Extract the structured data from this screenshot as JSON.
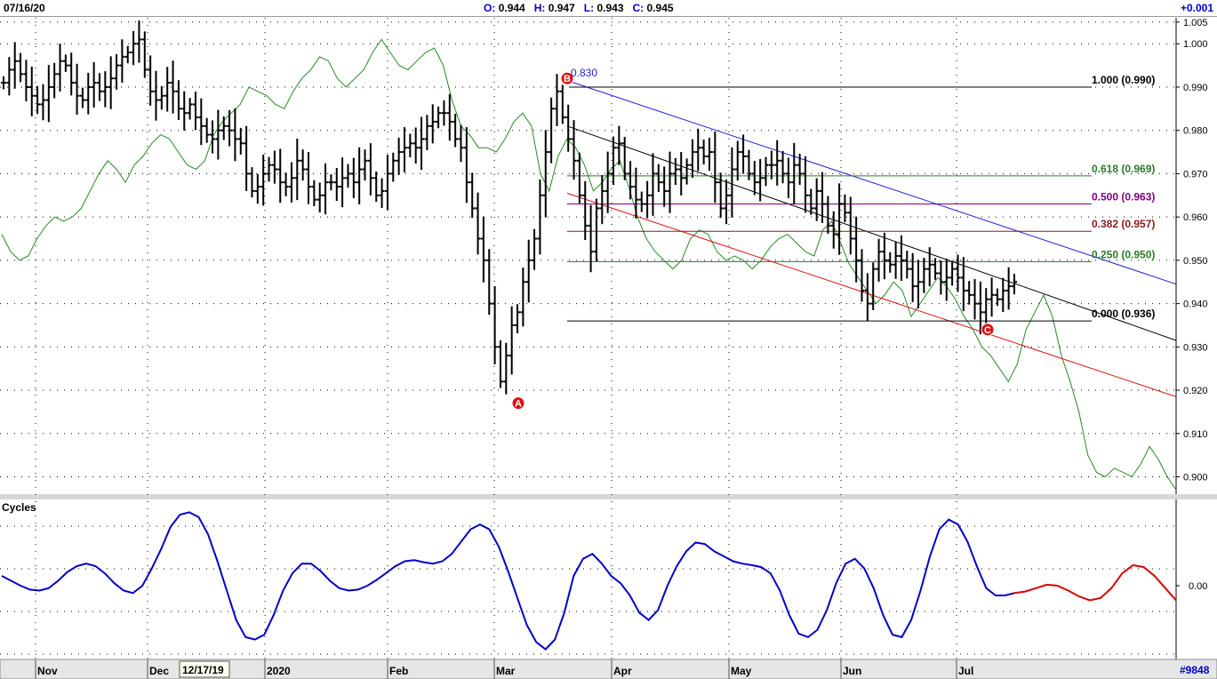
{
  "header": {
    "date": "07/16/20",
    "open_label": "O:",
    "open": "0.944",
    "high_label": "H:",
    "high": "0.947",
    "low_label": "L:",
    "low": "0.943",
    "close_label": "C:",
    "close": "0.945",
    "change": "+0.001"
  },
  "footer": {
    "cursor_date": "12/17/19",
    "symbol_code": "#9848"
  },
  "colors": {
    "price_bar": "#000000",
    "overlay": "#228b22",
    "upper_channel": "#1f1fd6",
    "mid_channel": "#000000",
    "lower_channel": "#e01010",
    "cycle_actual": "#0000cc",
    "cycle_projection": "#dd0000",
    "point_marker": "#e01010",
    "fib_0": "#000000",
    "fib_250": "#2a7a2a",
    "fib_382": "#8b1a1a",
    "fib_500": "#800080",
    "fib_618": "#2a7a2a",
    "fib_1": "#000000"
  },
  "chart_data": [
    {
      "type": "bar",
      "title": "",
      "subtype": "OHLC price bars with Fibonacci retracement, regression channel and overlay line",
      "x_axis": {
        "months": [
          "Nov",
          "Dec",
          "2020",
          "Feb",
          "Mar",
          "Apr",
          "May",
          "Jun",
          "Jul"
        ]
      },
      "y_axis": {
        "ylim": [
          0.896,
          1.006
        ],
        "ticks": [
          "1.005",
          "1.000",
          "0.990",
          "0.980",
          "0.970",
          "0.960",
          "0.950",
          "0.940",
          "0.930",
          "0.920",
          "0.910",
          "0.900"
        ],
        "grid": "dotted"
      },
      "markers": [
        {
          "label": "A",
          "value": 0.917
        },
        {
          "label": "B",
          "value": 0.992,
          "annotation": "0.830"
        },
        {
          "label": "C",
          "value": 0.934
        }
      ],
      "fibonacci": [
        {
          "label": "1.000 (0.990)",
          "value": 0.99
        },
        {
          "label": "0.618 (0.969)",
          "value": 0.9695
        },
        {
          "label": "0.500 (0.963)",
          "value": 0.963
        },
        {
          "label": "0.382 (0.957)",
          "value": 0.9567
        },
        {
          "label": "0.250 (0.950)",
          "value": 0.9497
        },
        {
          "label": "0.000 (0.936)",
          "value": 0.936
        }
      ],
      "series": [
        {
          "kind": "ohlc",
          "close": [
            0.991,
            0.994,
            0.996,
            0.993,
            0.99,
            0.988,
            0.986,
            0.987,
            0.99,
            0.993,
            0.996,
            0.995,
            0.991,
            0.988,
            0.987,
            0.99,
            0.991,
            0.989,
            0.99,
            0.992,
            0.995,
            0.997,
            0.998,
            1.0,
            1.001,
            0.994,
            0.989,
            0.987,
            0.988,
            0.991,
            0.989,
            0.985,
            0.984,
            0.986,
            0.983,
            0.981,
            0.979,
            0.978,
            0.98,
            0.981,
            0.98,
            0.978,
            0.977,
            0.97,
            0.966,
            0.967,
            0.97,
            0.972,
            0.971,
            0.968,
            0.967,
            0.969,
            0.973,
            0.971,
            0.967,
            0.964,
            0.965,
            0.968,
            0.968,
            0.967,
            0.969,
            0.97,
            0.968,
            0.971,
            0.973,
            0.969,
            0.965,
            0.966,
            0.97,
            0.973,
            0.975,
            0.976,
            0.977,
            0.976,
            0.978,
            0.981,
            0.982,
            0.984,
            0.984,
            0.982,
            0.978,
            0.976,
            0.968,
            0.962,
            0.955,
            0.95,
            0.94,
            0.93,
            0.922,
            0.928,
            0.935,
            0.938,
            0.945,
            0.95,
            0.955,
            0.965,
            0.975,
            0.985,
            0.989,
            0.983,
            0.978,
            0.973,
            0.965,
            0.958,
            0.952,
            0.962,
            0.966,
            0.97,
            0.976,
            0.977,
            0.97,
            0.967,
            0.964,
            0.963,
            0.965,
            0.97,
            0.968,
            0.966,
            0.97,
            0.971,
            0.969,
            0.972,
            0.975,
            0.976,
            0.974,
            0.975,
            0.968,
            0.962,
            0.965,
            0.971,
            0.975,
            0.974,
            0.97,
            0.968,
            0.969,
            0.972,
            0.972,
            0.973,
            0.97,
            0.968,
            0.972,
            0.97,
            0.965,
            0.962,
            0.966,
            0.963,
            0.958,
            0.956,
            0.963,
            0.961,
            0.955,
            0.95,
            0.943,
            0.94,
            0.948,
            0.952,
            0.95,
            0.949,
            0.951,
            0.95,
            0.948,
            0.944,
            0.945,
            0.948,
            0.949,
            0.947,
            0.945,
            0.946,
            0.948,
            0.946,
            0.943,
            0.942,
            0.94,
            0.938,
            0.941,
            0.942,
            0.941,
            0.943,
            0.944,
            0.945
          ]
        },
        {
          "kind": "overlay",
          "values": [
            0.956,
            0.952,
            0.95,
            0.951,
            0.955,
            0.958,
            0.96,
            0.959,
            0.96,
            0.962,
            0.966,
            0.97,
            0.973,
            0.971,
            0.968,
            0.972,
            0.974,
            0.977,
            0.979,
            0.978,
            0.975,
            0.972,
            0.971,
            0.973,
            0.979,
            0.982,
            0.984,
            0.986,
            0.99,
            0.989,
            0.988,
            0.986,
            0.985,
            0.989,
            0.992,
            0.994,
            0.997,
            0.996,
            0.992,
            0.99,
            0.992,
            0.994,
            0.998,
            1.001,
            0.998,
            0.995,
            0.994,
            0.996,
            0.998,
            0.999,
            0.995,
            0.987,
            0.981,
            0.979,
            0.976,
            0.976,
            0.975,
            0.978,
            0.982,
            0.984,
            0.981,
            0.97,
            0.966,
            0.974,
            0.978,
            0.976,
            0.972,
            0.966,
            0.968,
            0.971,
            0.973,
            0.967,
            0.96,
            0.955,
            0.952,
            0.95,
            0.948,
            0.95,
            0.955,
            0.957,
            0.956,
            0.952,
            0.95,
            0.951,
            0.95,
            0.948,
            0.95,
            0.953,
            0.955,
            0.956,
            0.954,
            0.952,
            0.951,
            0.957,
            0.959,
            0.954,
            0.949,
            0.946,
            0.943,
            0.94,
            0.942,
            0.945,
            0.943,
            0.937,
            0.94,
            0.943,
            0.946,
            0.944,
            0.941,
            0.937,
            0.934,
            0.93,
            0.928,
            0.925,
            0.922,
            0.926,
            0.934,
            0.938,
            0.942,
            0.937,
            0.928,
            0.922,
            0.915,
            0.905,
            0.901,
            0.9,
            0.902,
            0.901,
            0.9,
            0.903,
            0.907,
            0.904,
            0.9,
            0.897
          ]
        }
      ]
    },
    {
      "type": "line",
      "title": "Cycles",
      "y_axis": {
        "ticks": [
          "0.00"
        ]
      },
      "series": [
        {
          "kind": "actual",
          "values": [
            0.2,
            0.1,
            0.0,
            -0.08,
            -0.1,
            -0.05,
            0.1,
            0.28,
            0.4,
            0.45,
            0.4,
            0.25,
            0.05,
            -0.1,
            -0.15,
            0.0,
            0.35,
            0.75,
            1.2,
            1.45,
            1.5,
            1.4,
            1.05,
            0.5,
            -0.1,
            -0.7,
            -1.05,
            -1.1,
            -1.0,
            -0.6,
            -0.1,
            0.25,
            0.45,
            0.45,
            0.3,
            0.1,
            -0.05,
            -0.1,
            -0.08,
            0.0,
            0.12,
            0.26,
            0.4,
            0.5,
            0.52,
            0.48,
            0.45,
            0.5,
            0.65,
            0.9,
            1.15,
            1.25,
            1.15,
            0.8,
            0.3,
            -0.25,
            -0.8,
            -1.15,
            -1.3,
            -1.1,
            -0.55,
            0.2,
            0.55,
            0.65,
            0.45,
            0.2,
            0.05,
            -0.2,
            -0.55,
            -0.7,
            -0.5,
            0.0,
            0.4,
            0.7,
            0.88,
            0.85,
            0.7,
            0.6,
            0.5,
            0.45,
            0.42,
            0.38,
            0.25,
            -0.1,
            -0.6,
            -0.98,
            -1.05,
            -0.9,
            -0.5,
            0.05,
            0.45,
            0.55,
            0.35,
            -0.05,
            -0.6,
            -1.0,
            -1.05,
            -0.7,
            -0.1,
            0.6,
            1.15,
            1.35,
            1.25,
            0.9,
            0.4,
            -0.05,
            -0.2,
            -0.2,
            -0.15
          ]
        },
        {
          "kind": "projection",
          "values": [
            -0.15,
            -0.12,
            -0.05,
            0.02,
            0.0,
            -0.1,
            -0.22,
            -0.3,
            -0.25,
            -0.05,
            0.25,
            0.42,
            0.38,
            0.2,
            -0.05,
            -0.3
          ]
        }
      ]
    }
  ]
}
